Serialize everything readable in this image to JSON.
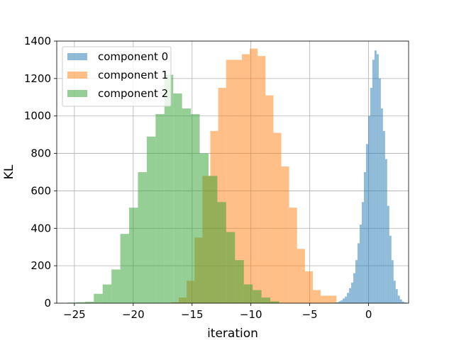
{
  "chart_data": {
    "type": "histogram",
    "title": "",
    "xlabel": "iteration",
    "ylabel": "KL",
    "xlim": [
      -26.5,
      3.4
    ],
    "ylim": [
      0,
      1400
    ],
    "xticks": [
      -25,
      -20,
      -15,
      -10,
      -5,
      0
    ],
    "xtick_labels": [
      "−25",
      "−20",
      "−15",
      "−10",
      "−5",
      "0"
    ],
    "yticks": [
      0,
      200,
      400,
      600,
      800,
      1000,
      1200,
      1400
    ],
    "ytick_labels": [
      "0",
      "200",
      "400",
      "600",
      "800",
      "1000",
      "1200",
      "1400"
    ],
    "grid": true,
    "legend_position": "top-left",
    "series": [
      {
        "name": "component 0",
        "color": "#1f77b4",
        "opacity": 0.5,
        "bin_start": -3.1,
        "bin_width": 0.18,
        "counts": [
          1,
          3,
          5,
          10,
          15,
          25,
          35,
          55,
          80,
          110,
          160,
          230,
          320,
          420,
          540,
          700,
          850,
          1000,
          1150,
          1300,
          1350,
          1330,
          1200,
          1040,
          920,
          770,
          520,
          360,
          230,
          120,
          75,
          40,
          20,
          8,
          4,
          1
        ]
      },
      {
        "name": "component 1",
        "color": "#ff7f0e",
        "opacity": 0.5,
        "bin_start": -16.8,
        "bin_width": 0.67,
        "counts": [
          5,
          30,
          120,
          350,
          680,
          920,
          1150,
          1300,
          1300,
          1330,
          1360,
          1320,
          1110,
          910,
          730,
          510,
          290,
          170,
          70,
          40,
          40
        ]
      },
      {
        "name": "component 2",
        "color": "#2ca02c",
        "opacity": 0.5,
        "bin_start": -25.6,
        "bin_width": 0.75,
        "counts": [
          3,
          5,
          8,
          50,
          100,
          180,
          370,
          510,
          700,
          890,
          1010,
          1220,
          1120,
          1040,
          1010,
          800,
          680,
          540,
          380,
          230,
          100,
          70,
          30,
          10
        ]
      }
    ]
  }
}
